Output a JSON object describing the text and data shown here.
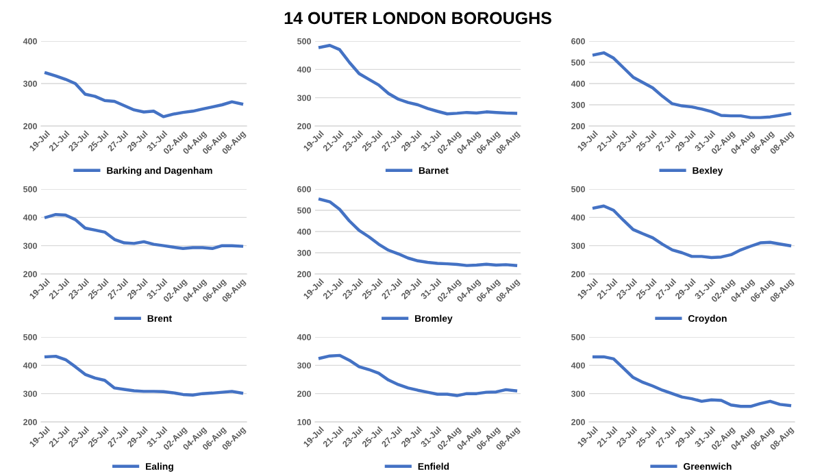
{
  "chart_data": [
    {
      "type": "line",
      "categories": [
        "19-Jul",
        null,
        "21-Jul",
        null,
        "23-Jul",
        null,
        "25-Jul",
        null,
        "27-Jul",
        null,
        "29-Jul",
        null,
        "31-Jul",
        null,
        "02-Aug",
        null,
        "04-Aug",
        null,
        "06-Aug",
        null,
        "08-Aug"
      ],
      "ylim": [
        200,
        400
      ],
      "yticks": [
        200,
        300,
        400
      ],
      "grid": "y",
      "legend": "bottom",
      "series": [
        {
          "name": "Barking and Dagenham",
          "color": "#4472c4",
          "values": [
            325,
            318,
            310,
            300,
            275,
            270,
            260,
            258,
            248,
            238,
            233,
            235,
            222,
            228,
            232,
            235,
            240,
            245,
            250,
            257,
            252
          ]
        }
      ]
    },
    {
      "type": "line",
      "categories": [
        "19-Jul",
        null,
        "21-Jul",
        null,
        "23-Jul",
        null,
        "25-Jul",
        null,
        "27-Jul",
        null,
        "29-Jul",
        null,
        "31-Jul",
        null,
        "02-Aug",
        null,
        "04-Aug",
        null,
        "06-Aug",
        null,
        "08-Aug"
      ],
      "title": "14 OUTER LONDON BOROUGHS",
      "ylim": [
        200,
        500
      ],
      "yticks": [
        200,
        300,
        400,
        500
      ],
      "grid": "y",
      "legend": "bottom",
      "series": [
        {
          "name": "Barnet",
          "color": "#4472c4",
          "values": [
            478,
            485,
            470,
            425,
            385,
            365,
            345,
            315,
            295,
            283,
            275,
            262,
            252,
            243,
            245,
            248,
            246,
            250,
            248,
            246,
            245
          ]
        }
      ]
    },
    {
      "type": "line",
      "categories": [
        "19-Jul",
        null,
        "21-Jul",
        null,
        "23-Jul",
        null,
        "25-Jul",
        null,
        "27-Jul",
        null,
        "29-Jul",
        null,
        "31-Jul",
        null,
        "02-Aug",
        null,
        "04-Aug",
        null,
        "06-Aug",
        null,
        "08-Aug"
      ],
      "ylim": [
        200,
        600
      ],
      "yticks": [
        200,
        300,
        400,
        500,
        600
      ],
      "grid": "y",
      "legend": "bottom",
      "series": [
        {
          "name": "Bexley",
          "color": "#4472c4",
          "values": [
            535,
            545,
            520,
            475,
            430,
            405,
            380,
            340,
            305,
            295,
            290,
            280,
            268,
            250,
            248,
            248,
            240,
            240,
            243,
            250,
            258
          ]
        }
      ]
    },
    {
      "type": "line",
      "categories": [
        "19-Jul",
        null,
        "21-Jul",
        null,
        "23-Jul",
        null,
        "25-Jul",
        null,
        "27-Jul",
        null,
        "29-Jul",
        null,
        "31-Jul",
        null,
        "02-Aug",
        null,
        "04-Aug",
        null,
        "06-Aug",
        null,
        "08-Aug"
      ],
      "ylim": [
        200,
        500
      ],
      "yticks": [
        200,
        300,
        400,
        500
      ],
      "grid": "y",
      "legend": "bottom",
      "series": [
        {
          "name": "Brent",
          "color": "#4472c4",
          "values": [
            400,
            410,
            408,
            392,
            362,
            355,
            348,
            322,
            310,
            308,
            314,
            305,
            300,
            295,
            290,
            293,
            293,
            290,
            300,
            300,
            298
          ]
        }
      ]
    },
    {
      "type": "line",
      "categories": [
        "19-Jul",
        null,
        "21-Jul",
        null,
        "23-Jul",
        null,
        "25-Jul",
        null,
        "27-Jul",
        null,
        "29-Jul",
        null,
        "31-Jul",
        null,
        "02-Aug",
        null,
        "04-Aug",
        null,
        "06-Aug",
        null,
        "08-Aug"
      ],
      "ylim": [
        200,
        600
      ],
      "yticks": [
        200,
        300,
        400,
        500,
        600
      ],
      "grid": "y",
      "legend": "bottom",
      "series": [
        {
          "name": "Bromley",
          "color": "#4472c4",
          "values": [
            552,
            540,
            505,
            450,
            405,
            375,
            340,
            312,
            295,
            275,
            262,
            255,
            250,
            248,
            245,
            240,
            242,
            246,
            242,
            244,
            240
          ]
        }
      ]
    },
    {
      "type": "line",
      "categories": [
        "19-Jul",
        null,
        "21-Jul",
        null,
        "23-Jul",
        null,
        "25-Jul",
        null,
        "27-Jul",
        null,
        "29-Jul",
        null,
        "31-Jul",
        null,
        "02-Aug",
        null,
        "04-Aug",
        null,
        "06-Aug",
        null,
        "08-Aug"
      ],
      "ylim": [
        200,
        500
      ],
      "yticks": [
        200,
        300,
        400,
        500
      ],
      "grid": "y",
      "legend": "bottom",
      "series": [
        {
          "name": "Croydon",
          "color": "#4472c4",
          "values": [
            433,
            440,
            425,
            390,
            357,
            342,
            328,
            305,
            285,
            275,
            262,
            262,
            258,
            260,
            268,
            285,
            298,
            310,
            312,
            306,
            300
          ]
        }
      ]
    },
    {
      "type": "line",
      "categories": [
        "19-Jul",
        null,
        "21-Jul",
        null,
        "23-Jul",
        null,
        "25-Jul",
        null,
        "27-Jul",
        null,
        "29-Jul",
        null,
        "31-Jul",
        null,
        "02-Aug",
        null,
        "04-Aug",
        null,
        "06-Aug",
        null,
        "08-Aug"
      ],
      "ylim": [
        200,
        500
      ],
      "yticks": [
        200,
        300,
        400,
        500
      ],
      "grid": "y",
      "legend": "bottom",
      "series": [
        {
          "name": "Ealing",
          "color": "#4472c4",
          "values": [
            430,
            432,
            420,
            395,
            368,
            355,
            347,
            320,
            315,
            310,
            308,
            308,
            307,
            303,
            297,
            295,
            300,
            302,
            305,
            308,
            302
          ]
        }
      ]
    },
    {
      "type": "line",
      "categories": [
        "19-Jul",
        null,
        "21-Jul",
        null,
        "23-Jul",
        null,
        "25-Jul",
        null,
        "27-Jul",
        null,
        "29-Jul",
        null,
        "31-Jul",
        null,
        "02-Aug",
        null,
        "04-Aug",
        null,
        "06-Aug",
        null,
        "08-Aug"
      ],
      "ylim": [
        100,
        400
      ],
      "yticks": [
        100,
        200,
        300,
        400
      ],
      "grid": "y",
      "legend": "bottom",
      "series": [
        {
          "name": "Enfield",
          "color": "#4472c4",
          "values": [
            325,
            333,
            335,
            318,
            295,
            285,
            272,
            248,
            232,
            220,
            212,
            205,
            198,
            198,
            193,
            200,
            200,
            205,
            206,
            214,
            210
          ]
        }
      ]
    },
    {
      "type": "line",
      "categories": [
        "19-Jul",
        null,
        "21-Jul",
        null,
        "23-Jul",
        null,
        "25-Jul",
        null,
        "27-Jul",
        null,
        "29-Jul",
        null,
        "31-Jul",
        null,
        "02-Aug",
        null,
        "04-Aug",
        null,
        "06-Aug",
        null,
        "08-Aug"
      ],
      "ylim": [
        200,
        500
      ],
      "yticks": [
        200,
        300,
        400,
        500
      ],
      "grid": "y",
      "legend": "bottom",
      "series": [
        {
          "name": "Greenwich",
          "color": "#4472c4",
          "values": [
            430,
            430,
            423,
            390,
            357,
            340,
            327,
            312,
            300,
            288,
            282,
            273,
            278,
            276,
            260,
            255,
            255,
            265,
            273,
            262,
            258
          ]
        }
      ]
    }
  ]
}
